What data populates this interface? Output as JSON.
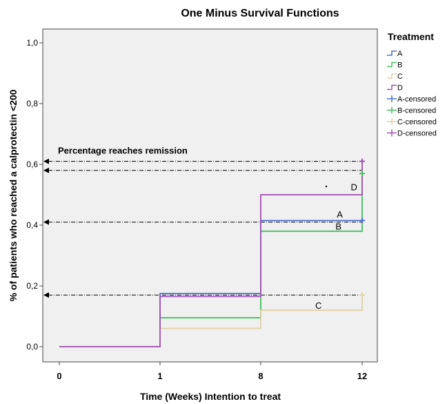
{
  "chart_data": {
    "type": "line",
    "title": "One Minus Survival Functions",
    "xlabel": "Time (Weeks) Intention to treat",
    "ylabel": "% of patients who reached a calprotectin <200",
    "x_ticks": [
      "0",
      "1",
      "8",
      "12"
    ],
    "y_ticks": [
      "0,0",
      "0,2",
      "0,4",
      "0,6",
      "0,8",
      "1,0"
    ],
    "y_tick_values": [
      0,
      0.2,
      0.4,
      0.6,
      0.8,
      1.0
    ],
    "ylim": [
      -0.03,
      1.05
    ],
    "legend_title": "Treatment",
    "legend_position": "right",
    "series": [
      {
        "name": "A",
        "color": "#4a6fd1",
        "steps": [
          [
            0,
            0
          ],
          [
            1,
            0.175
          ],
          [
            8,
            0.415
          ],
          [
            12,
            0.415
          ]
        ],
        "censor": [
          12,
          0.415
        ]
      },
      {
        "name": "B",
        "color": "#3fbf5f",
        "steps": [
          [
            0,
            0
          ],
          [
            1,
            0.095
          ],
          [
            8,
            0.38
          ],
          [
            12,
            0.57
          ]
        ],
        "censor": [
          12,
          0.57
        ]
      },
      {
        "name": "C",
        "color": "#ddd3a6",
        "steps": [
          [
            0,
            0
          ],
          [
            1,
            0.06
          ],
          [
            8,
            0.12
          ],
          [
            12,
            0.18
          ]
        ],
        "censor": [
          12,
          0.17
        ]
      },
      {
        "name": "D",
        "color": "#a24fb3",
        "steps": [
          [
            0,
            0
          ],
          [
            1,
            0.165
          ],
          [
            8,
            0.5
          ],
          [
            12,
            0.615
          ]
        ],
        "censor": [
          12,
          0.61
        ]
      }
    ],
    "legend_labels": [
      "A",
      "B",
      "C",
      "D",
      "A-censored",
      "B-censored",
      "C-censored",
      "D-censored"
    ],
    "reference_lines": [
      {
        "y": 0.61,
        "x_end": 12
      },
      {
        "y": 0.58,
        "x_end": 12
      },
      {
        "y": 0.41,
        "x_end": 12
      },
      {
        "y": 0.17,
        "x_end": 12
      }
    ],
    "annotations": [
      {
        "text": "Percentage reaches remission",
        "x": 0,
        "y": 0.635
      },
      {
        "text": "D",
        "x": 11.55,
        "y": 0.515
      },
      {
        "text": "A",
        "x": 11.0,
        "y": 0.425
      },
      {
        "text": "B",
        "x": 10.95,
        "y": 0.385
      },
      {
        "text": "C",
        "x": 10.15,
        "y": 0.125
      }
    ]
  }
}
